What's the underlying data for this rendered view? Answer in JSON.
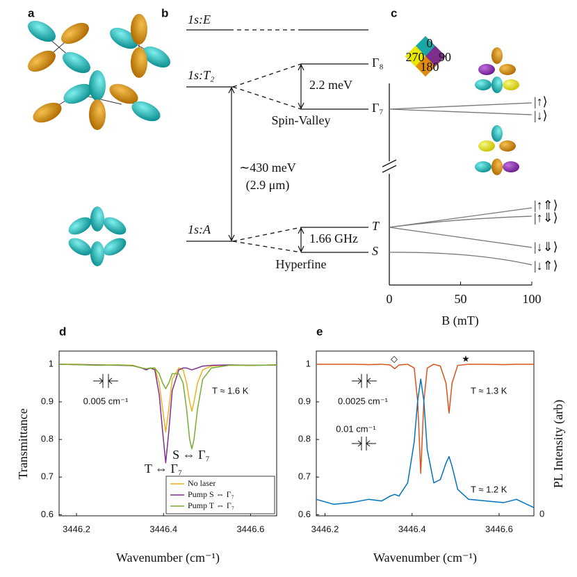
{
  "panel_labels": [
    "a",
    "b",
    "c",
    "d",
    "e"
  ],
  "energy_diagram": {
    "levels": [
      "1s:E",
      "1s:T₂",
      "1s:A"
    ],
    "states": [
      "Γ₈",
      "Γ₇",
      "T",
      "S"
    ],
    "splitting_labels": [
      "2.2 meV",
      "1.66 GHz"
    ],
    "group_labels": [
      "Spin-Valley",
      "Hyperfine"
    ],
    "gap_label": [
      "∼430 meV",
      "(2.9 μm)"
    ]
  },
  "zeeman": {
    "xlabel": "B (mT)",
    "xlim": [
      0,
      100
    ],
    "xticks": [
      0,
      50,
      100
    ],
    "kets": [
      "|↑⟩",
      "|↓⟩",
      "|↑⇑⟩",
      "|↑⇓⟩",
      "|↓⇓⟩",
      "|↓⇑⟩"
    ],
    "diamond": [
      "0",
      "90",
      "180",
      "270"
    ]
  },
  "chart_data": [
    {
      "type": "line",
      "xlabel": "Wavenumber (cm⁻¹)",
      "ylabel": "Transmittance",
      "x": [
        3446.16,
        3446.2,
        3446.25,
        3446.3,
        3446.33,
        3446.35,
        3446.36,
        3446.37,
        3446.38,
        3446.39,
        3446.398,
        3446.405,
        3446.412,
        3446.42,
        3446.435,
        3446.445,
        3446.453,
        3446.46,
        3446.465,
        3446.47,
        3446.478,
        3446.49,
        3446.51,
        3446.55,
        3446.6,
        3446.66
      ],
      "xlim": [
        3446.16,
        3446.66
      ],
      "xticks": [
        3446.2,
        3446.4,
        3446.6
      ],
      "ylim": [
        0.597,
        1.035
      ],
      "yticks": [
        0.6,
        0.7,
        0.8,
        0.9,
        1
      ],
      "legend": "lower right",
      "series": [
        {
          "name": "No laser",
          "color": "#EDB120",
          "values": [
            1,
            1,
            0.998,
            0.998,
            0.997,
            0.99,
            0.985,
            0.99,
            0.99,
            0.95,
            0.88,
            0.82,
            0.88,
            0.96,
            0.99,
            0.985,
            0.95,
            0.9,
            0.875,
            0.9,
            0.95,
            0.985,
            0.995,
            0.998,
            0.997,
            0.998
          ]
        },
        {
          "name": "Pump S ⇔ Γ₇",
          "color": "#7E2F8E",
          "values": [
            1,
            0.999,
            0.998,
            0.997,
            0.996,
            0.99,
            0.985,
            0.99,
            0.985,
            0.92,
            0.82,
            0.738,
            0.82,
            0.93,
            0.985,
            0.99,
            0.99,
            0.987,
            0.985,
            0.987,
            0.99,
            0.995,
            0.997,
            0.998,
            0.997,
            0.998
          ]
        },
        {
          "name": "Pump T ⇔ Γ₇",
          "color": "#77AC30",
          "values": [
            1,
            0.999,
            0.997,
            0.998,
            0.996,
            0.99,
            0.988,
            0.99,
            0.99,
            0.975,
            0.95,
            0.935,
            0.95,
            0.975,
            0.975,
            0.95,
            0.88,
            0.8,
            0.775,
            0.8,
            0.88,
            0.96,
            0.99,
            0.997,
            0.997,
            0.998
          ]
        }
      ],
      "annotations": [
        "0.005 cm⁻¹",
        "T ≈ 1.6 K",
        "T ⇔ Γ₇",
        "S ⇔ Γ₇"
      ]
    },
    {
      "type": "line",
      "xlabel": "Wavenumber (cm⁻¹)",
      "y2label": "PL Intensity (arb)",
      "x": [
        3446.18,
        3446.22,
        3446.26,
        3446.3,
        3446.33,
        3446.35,
        3446.36,
        3446.37,
        3446.39,
        3446.405,
        3446.413,
        3446.42,
        3446.427,
        3446.435,
        3446.45,
        3446.465,
        3446.478,
        3446.485,
        3446.492,
        3446.505,
        3446.53,
        3446.57,
        3446.61,
        3446.64,
        3446.68
      ],
      "xlim": [
        3446.18,
        3446.68
      ],
      "xticks": [
        3446.2,
        3446.4,
        3446.6
      ],
      "ylim": [
        0.597,
        1.035
      ],
      "yticks": [
        0.6,
        0.7,
        0.8,
        0.9,
        1
      ],
      "y2lim": [
        0,
        1
      ],
      "y2ticks": [
        0
      ],
      "series": [
        {
          "color": "#D95319",
          "values": [
            1,
            1,
            1,
            0.999,
            1,
            0.998,
            0.988,
            0.998,
            1,
            0.99,
            0.9,
            0.71,
            0.9,
            0.99,
            1,
            0.995,
            0.95,
            0.87,
            0.95,
            0.997,
            1,
            1,
            0.999,
            1,
            1
          ]
        },
        {
          "color": "#0072BD",
          "axis": "y2",
          "values": [
            0.1,
            0.07,
            0.08,
            0.1,
            0.09,
            0.12,
            0.13,
            0.12,
            0.2,
            0.45,
            0.7,
            0.83,
            0.7,
            0.4,
            0.2,
            0.22,
            0.32,
            0.36,
            0.3,
            0.16,
            0.1,
            0.09,
            0.08,
            0.1,
            0.05
          ]
        }
      ],
      "annotations": [
        "0.0025 cm⁻¹",
        "T ≈ 1.3 K",
        "0.01 cm⁻¹",
        "T ≈ 1.2 K",
        "◇",
        "★"
      ]
    }
  ]
}
